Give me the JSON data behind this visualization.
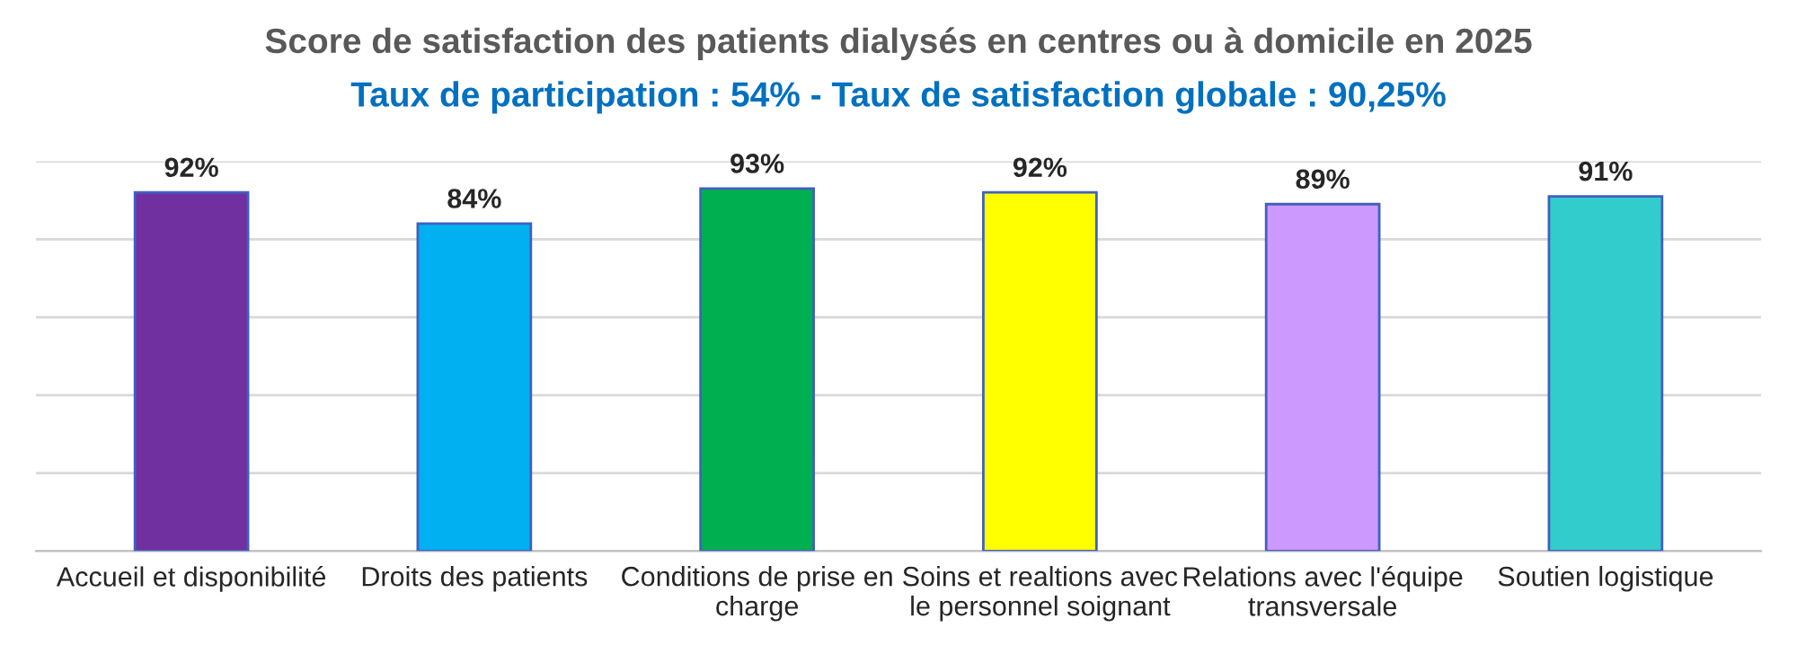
{
  "chart_data": {
    "type": "bar",
    "title": "Score de satisfaction des patients dialysés en centres ou à domicile en 2025",
    "subtitle": "Taux de participation : 54% - Taux de satisfaction globale : 90,25%",
    "categories": [
      "Accueil et disponibilité",
      "Droits des patients",
      "Conditions de prise en\ncharge",
      "Soins et realtions avec\nle personnel soignant",
      "Relations avec l'équipe\ntransversale",
      "Soutien logistique"
    ],
    "values": [
      92,
      84,
      93,
      92,
      89,
      91
    ],
    "value_labels": [
      "92%",
      "84%",
      "93%",
      "92%",
      "89%",
      "91%"
    ],
    "colors": [
      "#7030a0",
      "#00b0f0",
      "#00b050",
      "#ffff00",
      "#cc99ff",
      "#33cccc"
    ],
    "ylim": [
      0,
      100
    ],
    "yticks": [
      {
        "value": 0,
        "label": null
      },
      {
        "value": 20,
        "label": null
      },
      {
        "value": 40,
        "label": null
      },
      {
        "value": 60,
        "label": null
      },
      {
        "value": 80,
        "label": null
      },
      {
        "value": 100,
        "label": null
      }
    ],
    "grid": "y",
    "tick_labels": "x",
    "legend": false
  }
}
